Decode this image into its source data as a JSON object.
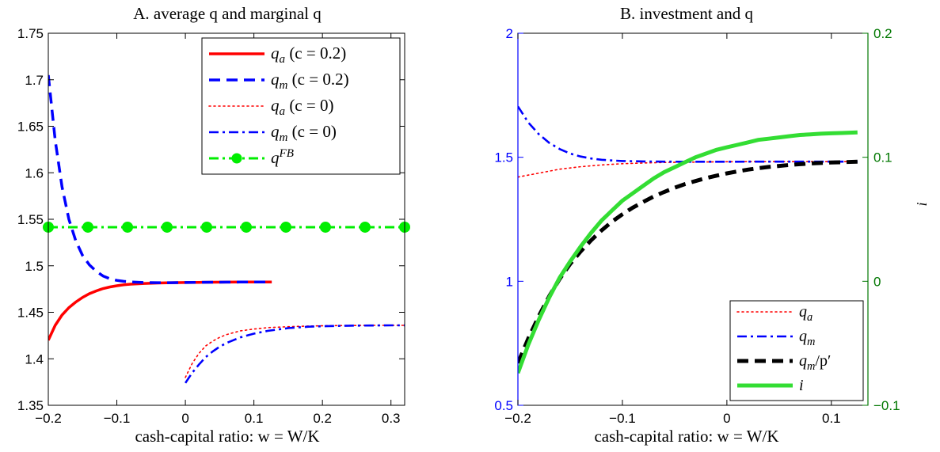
{
  "chart_data": [
    {
      "type": "line",
      "title": "A.  average q and marginal q",
      "xlabel": "cash-capital ratio:  w = W/K",
      "ylabel": "",
      "xlim": [
        -0.2,
        0.32
      ],
      "ylim": [
        1.35,
        1.75
      ],
      "xticks": [
        -0.2,
        -0.1,
        0,
        0.1,
        0.2,
        0.3
      ],
      "xtick_labels": [
        "−0.2",
        "−0.1",
        "0",
        "0.1",
        "0.2",
        "0.3"
      ],
      "yticks": [
        1.35,
        1.4,
        1.45,
        1.5,
        1.55,
        1.6,
        1.65,
        1.7,
        1.75
      ],
      "ytick_labels": [
        "1.35",
        "1.4",
        "1.45",
        "1.5",
        "1.55",
        "1.6",
        "1.65",
        "1.7",
        "1.75"
      ],
      "legend_position": "top-right",
      "series": [
        {
          "name": "q_a (c = 0.2)",
          "legend_label": "qa  (c = 0.2)",
          "color": "#ff0000",
          "style": "solid",
          "x": [
            -0.2,
            -0.19,
            -0.18,
            -0.17,
            -0.16,
            -0.15,
            -0.14,
            -0.13,
            -0.12,
            -0.11,
            -0.1,
            -0.09,
            -0.08,
            -0.06,
            -0.04,
            -0.02,
            0.0,
            0.02,
            0.04,
            0.06,
            0.08,
            0.1,
            0.126
          ],
          "y": [
            1.42,
            1.436,
            1.447,
            1.455,
            1.461,
            1.466,
            1.47,
            1.473,
            1.4755,
            1.4772,
            1.4785,
            1.4795,
            1.4802,
            1.481,
            1.4815,
            1.4818,
            1.482,
            1.4822,
            1.4823,
            1.4824,
            1.4825,
            1.4825,
            1.4825
          ]
        },
        {
          "name": "q_m (c = 0.2)",
          "legend_label": "qm  (c = 0.2)",
          "color": "#0000ff",
          "style": "dashed",
          "x": [
            -0.2,
            -0.19,
            -0.18,
            -0.17,
            -0.16,
            -0.15,
            -0.14,
            -0.13,
            -0.12,
            -0.11,
            -0.1,
            -0.09,
            -0.08,
            -0.06,
            -0.04,
            -0.02,
            0.0,
            0.02,
            0.04,
            0.06,
            0.08,
            0.1,
            0.126
          ],
          "y": [
            1.705,
            1.635,
            1.585,
            1.55,
            1.527,
            1.511,
            1.501,
            1.494,
            1.489,
            1.486,
            1.4843,
            1.4833,
            1.4826,
            1.482,
            1.4818,
            1.4818,
            1.482,
            1.4822,
            1.4823,
            1.4824,
            1.4825,
            1.4825,
            1.4825
          ]
        },
        {
          "name": "q_a (c = 0)",
          "legend_label": "qa  (c = 0)",
          "color": "#ff0000",
          "style": "dotted",
          "x": [
            0.0,
            0.01,
            0.02,
            0.03,
            0.04,
            0.05,
            0.06,
            0.08,
            0.1,
            0.12,
            0.15,
            0.18,
            0.21,
            0.24,
            0.27,
            0.3,
            0.32
          ],
          "y": [
            1.38,
            1.395,
            1.406,
            1.414,
            1.419,
            1.423,
            1.426,
            1.43,
            1.432,
            1.4335,
            1.4345,
            1.4352,
            1.4356,
            1.4358,
            1.436,
            1.436,
            1.436
          ]
        },
        {
          "name": "q_m (c = 0)",
          "legend_label": "qm  (c = 0)",
          "color": "#0000ff",
          "style": "dashdot",
          "x": [
            0.0,
            0.01,
            0.02,
            0.03,
            0.04,
            0.05,
            0.06,
            0.08,
            0.1,
            0.12,
            0.15,
            0.18,
            0.21,
            0.24,
            0.27,
            0.3,
            0.32
          ],
          "y": [
            1.374,
            1.385,
            1.394,
            1.402,
            1.408,
            1.413,
            1.417,
            1.423,
            1.427,
            1.43,
            1.433,
            1.4345,
            1.4352,
            1.4356,
            1.4358,
            1.436,
            1.436
          ]
        },
        {
          "name": "q^FB",
          "legend_label": "qFB",
          "color": "#00ee00",
          "style": "dashdot-markers",
          "x": [
            -0.2,
            -0.1422,
            -0.0844,
            -0.0267,
            0.0311,
            0.0889,
            0.1467,
            0.2044,
            0.2622,
            0.32
          ],
          "y": [
            1.5415,
            1.5415,
            1.5415,
            1.5415,
            1.5415,
            1.5415,
            1.5415,
            1.5415,
            1.5415,
            1.5415
          ]
        }
      ]
    },
    {
      "type": "line",
      "title": "B.  investment and q",
      "xlabel": "cash-capital ratio:  w = W/K",
      "ylabel": "",
      "y2label": "i",
      "xlim": [
        -0.2,
        0.135
      ],
      "ylim": [
        0.5,
        2
      ],
      "y2lim": [
        -0.1,
        0.2
      ],
      "xticks": [
        -0.2,
        -0.1,
        0,
        0.1
      ],
      "xtick_labels": [
        "−0.2",
        "−0.1",
        "0",
        "0.1"
      ],
      "yticks": [
        0.5,
        1,
        1.5,
        2
      ],
      "ytick_labels": [
        "0.5",
        "1",
        "1.5",
        "2"
      ],
      "y2ticks": [
        -0.1,
        0,
        0.1,
        0.2
      ],
      "y2tick_labels": [
        "−0.1",
        "0",
        "0.1",
        "0.2"
      ],
      "left_axis_color": "#0000ff",
      "right_axis_color": "#007700",
      "legend_position": "bottom-right",
      "series": [
        {
          "name": "q_a",
          "legend_label": "qa",
          "axis": "left",
          "color": "#ff0000",
          "style": "dotted",
          "x": [
            -0.2,
            -0.18,
            -0.16,
            -0.14,
            -0.12,
            -0.1,
            -0.08,
            -0.06,
            -0.04,
            -0.02,
            0.0,
            0.03,
            0.06,
            0.09,
            0.125
          ],
          "y": [
            1.42,
            1.436,
            1.452,
            1.462,
            1.469,
            1.474,
            1.477,
            1.479,
            1.48,
            1.481,
            1.482,
            1.4823,
            1.4825,
            1.4825,
            1.4825
          ]
        },
        {
          "name": "q_m",
          "legend_label": "qm",
          "axis": "left",
          "color": "#0000ff",
          "style": "dashdot",
          "x": [
            -0.2,
            -0.19,
            -0.18,
            -0.17,
            -0.16,
            -0.15,
            -0.14,
            -0.13,
            -0.12,
            -0.11,
            -0.1,
            -0.08,
            -0.06,
            -0.04,
            -0.02,
            0.0,
            0.03,
            0.06,
            0.09,
            0.125
          ],
          "y": [
            1.705,
            1.64,
            1.593,
            1.558,
            1.533,
            1.515,
            1.503,
            1.495,
            1.49,
            1.487,
            1.485,
            1.4832,
            1.4823,
            1.482,
            1.482,
            1.482,
            1.4823,
            1.4825,
            1.4825,
            1.4825
          ]
        },
        {
          "name": "q_m/p'",
          "legend_label": "qm/p′",
          "axis": "left",
          "color": "#000000",
          "style": "dashed-thick",
          "x": [
            -0.2,
            -0.19,
            -0.18,
            -0.17,
            -0.16,
            -0.15,
            -0.14,
            -0.13,
            -0.12,
            -0.11,
            -0.1,
            -0.09,
            -0.08,
            -0.07,
            -0.06,
            -0.05,
            -0.04,
            -0.03,
            -0.02,
            -0.01,
            0.0,
            0.01,
            0.02,
            0.03,
            0.04,
            0.05,
            0.06,
            0.07,
            0.08,
            0.09,
            0.1,
            0.11,
            0.125
          ],
          "y": [
            0.67,
            0.77,
            0.86,
            0.94,
            1.01,
            1.07,
            1.12,
            1.165,
            1.205,
            1.24,
            1.27,
            1.297,
            1.32,
            1.342,
            1.36,
            1.377,
            1.392,
            1.404,
            1.416,
            1.426,
            1.435,
            1.443,
            1.45,
            1.456,
            1.461,
            1.465,
            1.469,
            1.472,
            1.475,
            1.477,
            1.479,
            1.48,
            1.4825
          ]
        },
        {
          "name": "i",
          "legend_label": "i",
          "axis": "right",
          "color": "#33dd33",
          "style": "solid-thick",
          "x": [
            -0.2,
            -0.19,
            -0.18,
            -0.17,
            -0.16,
            -0.15,
            -0.14,
            -0.13,
            -0.12,
            -0.11,
            -0.1,
            -0.09,
            -0.08,
            -0.07,
            -0.06,
            -0.05,
            -0.04,
            -0.03,
            -0.02,
            -0.01,
            0.0,
            0.01,
            0.02,
            0.03,
            0.04,
            0.05,
            0.06,
            0.07,
            0.08,
            0.09,
            0.1,
            0.11,
            0.125
          ],
          "y": [
            -0.074,
            -0.051,
            -0.031,
            -0.013,
            0.003,
            0.016,
            0.028,
            0.039,
            0.049,
            0.057,
            0.065,
            0.071,
            0.077,
            0.083,
            0.088,
            0.092,
            0.096,
            0.1,
            0.103,
            0.106,
            0.108,
            0.11,
            0.112,
            0.114,
            0.115,
            0.116,
            0.117,
            0.118,
            0.1185,
            0.119,
            0.1193,
            0.1196,
            0.12
          ]
        }
      ]
    }
  ]
}
